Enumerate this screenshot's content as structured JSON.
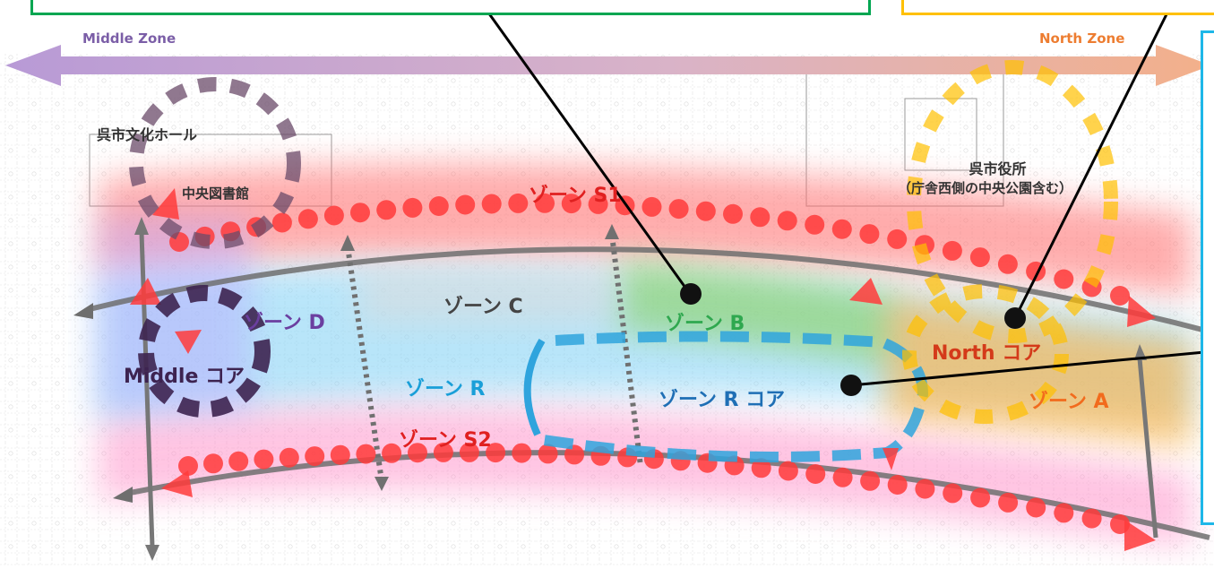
{
  "zones_header": {
    "middle_zone": "Middle Zone",
    "north_zone": "North Zone"
  },
  "landmarks": {
    "kure_cultural_hall": "呉市文化ホール",
    "central_library": "中央図書館",
    "city_hall_line1": "呉市役所",
    "city_hall_line2": "（庁舎西側の中央公園含む）"
  },
  "zones": {
    "zone_s1": "ゾーン S1",
    "zone_s2": "ゾーン S2",
    "zone_a": "ゾーン A",
    "zone_b": "ゾーン B",
    "zone_c": "ゾーン C",
    "zone_d": "ゾーン D",
    "zone_r": "ゾーン R",
    "zone_r_core": "ゾーン R コア",
    "north_core": "North コア",
    "middle_core": "Middle コア"
  },
  "colors": {
    "middle_purple": "#7b5ea7",
    "north_orange": "#ed7d31",
    "s_red": "#ff3b3b",
    "a_orange": "#f79646",
    "b_green": "#2fa84f",
    "r_blue": "#1a9fd8",
    "core_dark": "#3d2350",
    "yellow": "#ffc000",
    "green_box": "#00a651",
    "cyan_box": "#1eb7e8"
  }
}
